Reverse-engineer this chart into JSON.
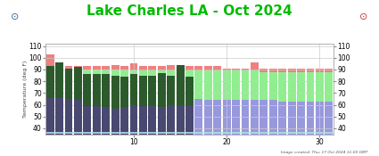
{
  "title": "Lake Charles LA - Oct 2024",
  "title_color": "#00bb00",
  "title_fontsize": 11,
  "ylabel": "Temperature (deg F)",
  "xlim": [
    0.5,
    31.5
  ],
  "ylim": [
    35,
    112
  ],
  "yticks": [
    40,
    50,
    60,
    70,
    80,
    90,
    100,
    110
  ],
  "xticks": [
    10,
    20,
    30
  ],
  "footnote": "Image created: Thu, 17 Oct 2024 11:00 GMT",
  "days": [
    1,
    2,
    3,
    4,
    5,
    6,
    7,
    8,
    9,
    10,
    11,
    12,
    13,
    14,
    15,
    16,
    17,
    18,
    19,
    20,
    21,
    22,
    23,
    24,
    25,
    26,
    27,
    28,
    29,
    30,
    31
  ],
  "record_high": [
    103,
    95,
    93,
    93,
    93,
    93,
    93,
    94,
    93,
    95,
    93,
    93,
    93,
    94,
    94,
    93,
    93,
    93,
    93,
    91,
    91,
    91,
    96,
    91,
    91,
    91,
    91,
    91,
    91,
    91,
    91
  ],
  "normal_high": [
    90,
    90,
    90,
    90,
    90,
    90,
    90,
    90,
    90,
    89,
    89,
    89,
    89,
    89,
    89,
    89,
    89,
    89,
    89,
    89,
    89,
    89,
    89,
    88,
    88,
    88,
    88,
    88,
    88,
    88,
    88
  ],
  "normal_low": [
    66,
    66,
    66,
    66,
    66,
    66,
    66,
    66,
    65,
    65,
    65,
    65,
    65,
    65,
    65,
    65,
    65,
    64,
    64,
    64,
    64,
    64,
    64,
    64,
    64,
    63,
    63,
    63,
    63,
    63,
    63
  ],
  "record_low": [
    44,
    44,
    44,
    44,
    44,
    44,
    44,
    44,
    44,
    44,
    44,
    44,
    44,
    44,
    44,
    44,
    44,
    44,
    44,
    44,
    44,
    44,
    44,
    44,
    44,
    44,
    44,
    44,
    44,
    44,
    37
  ],
  "obs_high": [
    93,
    96,
    91,
    92,
    86,
    86,
    86,
    85,
    84,
    86,
    85,
    85,
    87,
    85,
    94,
    84,
    null,
    null,
    null,
    null,
    null,
    null,
    null,
    null,
    null,
    null,
    null,
    null,
    null,
    null,
    null
  ],
  "obs_low": [
    66,
    66,
    65,
    64,
    59,
    59,
    58,
    57,
    58,
    60,
    59,
    60,
    58,
    60,
    60,
    60,
    null,
    null,
    null,
    null,
    null,
    null,
    null,
    null,
    null,
    null,
    null,
    null,
    null,
    null,
    null
  ],
  "color_record_high_band": "#f08080",
  "color_normal_band": "#90ee90",
  "color_record_low_band": "#9898dd",
  "color_obs_high_bar": "#2d5a2d",
  "color_obs_low_bar": "#484870",
  "color_cyan_line": "#b0e0e8",
  "background_color": "#ffffff",
  "grid_color": "#cccccc"
}
